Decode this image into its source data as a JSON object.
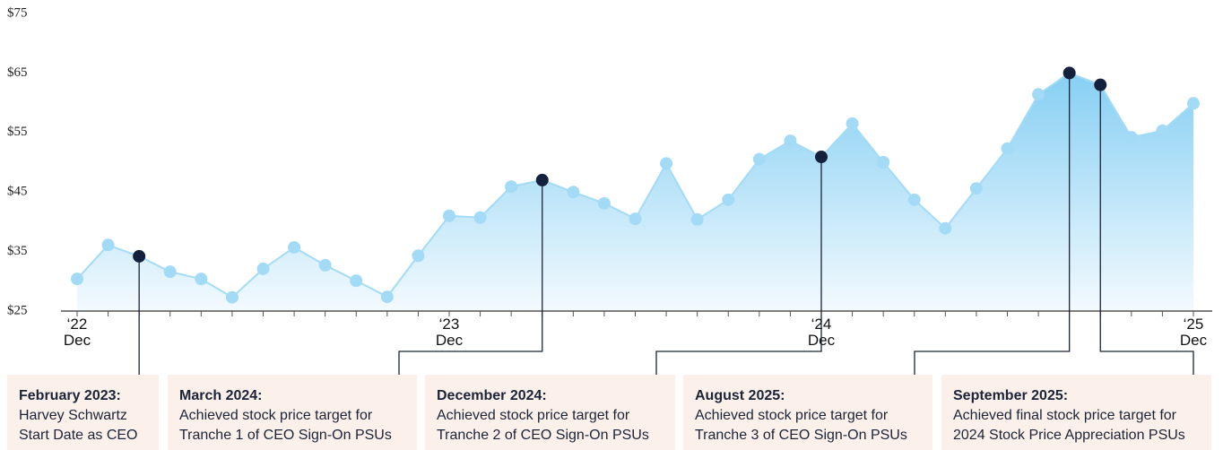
{
  "chart_data": {
    "type": "area",
    "categories": [
      [
        "‘22",
        "Dec"
      ],
      null,
      null,
      null,
      null,
      null,
      null,
      null,
      null,
      null,
      null,
      null,
      [
        "‘23",
        "Dec"
      ],
      null,
      null,
      null,
      null,
      null,
      null,
      null,
      null,
      null,
      null,
      null,
      [
        "‘24",
        "Dec"
      ],
      null,
      null,
      null,
      null,
      null,
      null,
      null,
      null,
      null,
      null,
      null,
      [
        "‘25",
        "Dec"
      ]
    ],
    "series": [
      {
        "color": "#a3dbf7",
        "highlight_color": "#14213d",
        "values": [
          30.4,
          36.1,
          34.2,
          31.6,
          30.4,
          27.3,
          32.1,
          35.7,
          32.7,
          30.1,
          27.4,
          34.3,
          41.0,
          40.7,
          45.9,
          47.0,
          45.0,
          43.1,
          40.5,
          49.8,
          40.4,
          43.7,
          50.5,
          53.6,
          50.9,
          56.5,
          50.0,
          43.7,
          38.9,
          45.6,
          52.3,
          61.4,
          65.0,
          63.0,
          54.2,
          55.3,
          59.9
        ]
      }
    ],
    "ylim": [
      25,
      75
    ],
    "yticks": [
      {
        "value": 25,
        "label": "$25"
      },
      {
        "value": 35,
        "label": "$35"
      },
      {
        "value": 45,
        "label": "$45"
      },
      {
        "value": 55,
        "label": "$55"
      },
      {
        "value": 65,
        "label": "$65"
      },
      {
        "value": 75,
        "label": "$75"
      }
    ],
    "annotations": [
      {
        "at": 2,
        "heading": "February 2023:",
        "lines": [
          "Harvey Schwartz",
          "Start Date as CEO"
        ]
      },
      {
        "at": 15,
        "heading": "March 2024:",
        "lines": [
          "Achieved stock price target for",
          "Tranche 1 of CEO Sign-On PSUs"
        ]
      },
      {
        "at": 24,
        "heading": "December 2024:",
        "lines": [
          "Achieved stock price target for",
          "Tranche 2 of CEO Sign-On PSUs"
        ]
      },
      {
        "at": 32,
        "heading": "August 2025:",
        "lines": [
          "Achieved stock price target for",
          "Tranche 3 of CEO Sign-On PSUs"
        ]
      },
      {
        "at": 33,
        "heading": "September 2025:",
        "lines": [
          "Achieved final stock price target for",
          "2024 Stock Price Appreciation PSUs"
        ]
      }
    ]
  }
}
